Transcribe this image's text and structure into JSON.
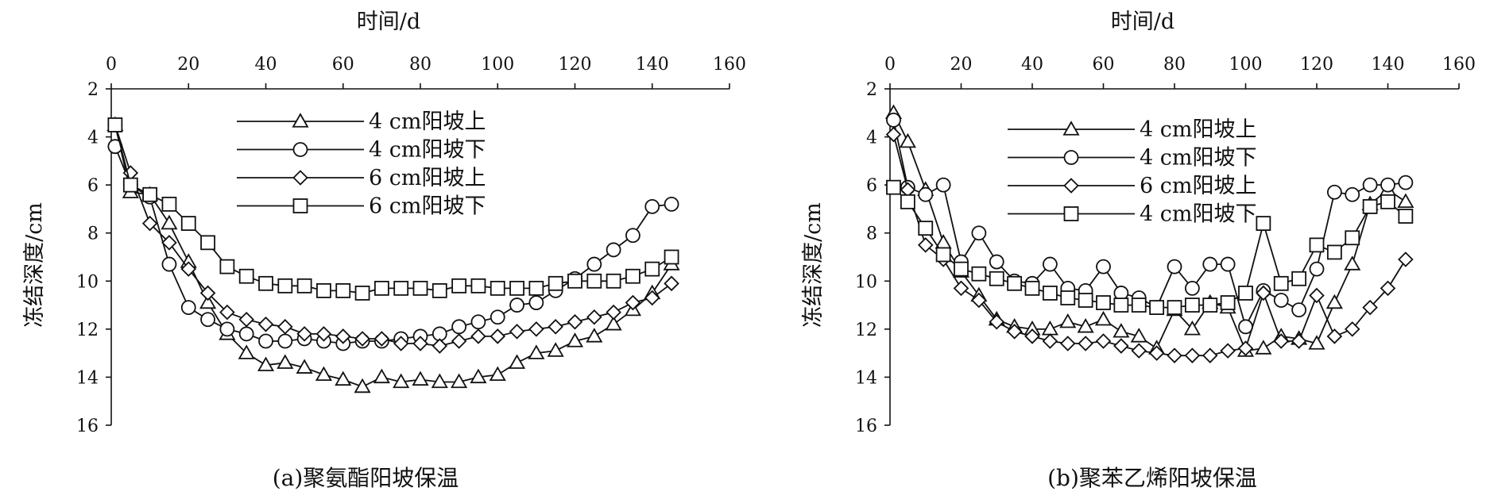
{
  "chart_data": [
    {
      "type": "line",
      "caption": "(a)聚氨酯阳坡保温",
      "xlabel": "时间/d",
      "ylabel": "冻结深度/cm",
      "xlim": [
        0,
        160
      ],
      "ylim": [
        2,
        16
      ],
      "y_inverted": true,
      "x_axis_position": "top",
      "xticks": [
        0,
        20,
        40,
        60,
        80,
        100,
        120,
        140,
        160
      ],
      "yticks": [
        2,
        4,
        6,
        8,
        10,
        12,
        14,
        16
      ],
      "grid": false,
      "legend_position": "top-center",
      "series": [
        {
          "name": "4 cm阳坡上",
          "marker": "triangle",
          "x": [
            1,
            5,
            10,
            15,
            20,
            25,
            30,
            35,
            40,
            45,
            50,
            55,
            60,
            65,
            70,
            75,
            80,
            85,
            90,
            95,
            100,
            105,
            110,
            115,
            120,
            125,
            130,
            135,
            140,
            145
          ],
          "y": [
            3.5,
            6.3,
            6.4,
            7.6,
            9.2,
            10.9,
            12.2,
            13.0,
            13.5,
            13.4,
            13.6,
            13.9,
            14.1,
            14.4,
            14.0,
            14.2,
            14.1,
            14.2,
            14.2,
            14.0,
            13.9,
            13.4,
            13.0,
            12.9,
            12.5,
            12.3,
            11.8,
            11.2,
            10.5,
            9.3
          ]
        },
        {
          "name": "4 cm阳坡下",
          "marker": "circle",
          "x": [
            1,
            5,
            10,
            15,
            20,
            25,
            30,
            35,
            40,
            45,
            50,
            55,
            60,
            65,
            70,
            75,
            80,
            85,
            90,
            95,
            100,
            105,
            110,
            115,
            120,
            125,
            130,
            135,
            140,
            145
          ],
          "y": [
            4.4,
            6.0,
            6.5,
            9.3,
            11.1,
            11.6,
            12.0,
            12.2,
            12.5,
            12.5,
            12.4,
            12.5,
            12.6,
            12.5,
            12.5,
            12.4,
            12.3,
            12.2,
            11.9,
            11.7,
            11.5,
            11.0,
            10.9,
            10.4,
            9.9,
            9.3,
            8.7,
            8.1,
            6.9,
            6.8
          ]
        },
        {
          "name": "6 cm阳坡上",
          "marker": "diamond",
          "x": [
            1,
            5,
            10,
            15,
            20,
            25,
            30,
            35,
            40,
            45,
            50,
            55,
            60,
            65,
            70,
            75,
            80,
            85,
            90,
            95,
            100,
            105,
            110,
            115,
            120,
            125,
            130,
            135,
            140,
            145
          ],
          "y": [
            3.5,
            5.5,
            7.6,
            8.4,
            9.5,
            10.5,
            11.3,
            11.6,
            11.8,
            11.9,
            12.2,
            12.2,
            12.3,
            12.4,
            12.4,
            12.6,
            12.6,
            12.7,
            12.5,
            12.3,
            12.3,
            12.1,
            12.0,
            11.9,
            11.7,
            11.5,
            11.3,
            10.9,
            10.7,
            10.1
          ]
        },
        {
          "name": "6 cm阳坡下",
          "marker": "square",
          "x": [
            1,
            5,
            10,
            15,
            20,
            25,
            30,
            35,
            40,
            45,
            50,
            55,
            60,
            65,
            70,
            75,
            80,
            85,
            90,
            95,
            100,
            105,
            110,
            115,
            120,
            125,
            130,
            135,
            140,
            145
          ],
          "y": [
            3.5,
            6.0,
            6.4,
            6.8,
            7.6,
            8.4,
            9.4,
            9.8,
            10.1,
            10.2,
            10.2,
            10.4,
            10.4,
            10.5,
            10.3,
            10.3,
            10.3,
            10.4,
            10.2,
            10.2,
            10.3,
            10.3,
            10.3,
            10.1,
            10.0,
            10.0,
            10.0,
            9.8,
            9.5,
            9.0
          ]
        }
      ]
    },
    {
      "type": "line",
      "caption": "(b)聚苯乙烯阳坡保温",
      "xlabel": "时间/d",
      "ylabel": "冻结深度/cm",
      "xlim": [
        0,
        160
      ],
      "ylim": [
        2,
        16
      ],
      "y_inverted": true,
      "x_axis_position": "top",
      "xticks": [
        0,
        20,
        40,
        60,
        80,
        100,
        120,
        140,
        160
      ],
      "yticks": [
        2,
        4,
        6,
        8,
        10,
        12,
        14,
        16
      ],
      "grid": false,
      "legend_position": "top-left",
      "series": [
        {
          "name": "4 cm阳坡上",
          "marker": "triangle",
          "x": [
            1,
            5,
            10,
            15,
            20,
            25,
            30,
            35,
            40,
            45,
            50,
            55,
            60,
            65,
            70,
            75,
            80,
            85,
            90,
            95,
            100,
            105,
            110,
            115,
            120,
            125,
            130,
            135,
            140,
            145
          ],
          "y": [
            3.0,
            4.2,
            6.2,
            8.4,
            9.6,
            10.6,
            11.6,
            11.9,
            12.0,
            12.0,
            11.7,
            11.9,
            11.6,
            12.1,
            12.3,
            12.8,
            11.2,
            12.0,
            10.9,
            11.1,
            12.9,
            12.8,
            12.3,
            12.4,
            12.6,
            10.9,
            9.3,
            6.8,
            6.2,
            6.7
          ]
        },
        {
          "name": "4 cm阳坡下",
          "marker": "circle",
          "x": [
            1,
            5,
            10,
            15,
            20,
            25,
            30,
            35,
            40,
            45,
            50,
            55,
            60,
            65,
            70,
            75,
            80,
            85,
            90,
            95,
            100,
            105,
            110,
            115,
            120,
            125,
            130,
            135,
            140,
            145
          ],
          "y": [
            3.3,
            6.1,
            6.4,
            6.0,
            9.2,
            8.0,
            9.2,
            10.0,
            10.1,
            9.3,
            10.3,
            10.4,
            9.4,
            10.5,
            10.7,
            11.1,
            9.4,
            10.3,
            9.3,
            9.3,
            11.9,
            10.4,
            10.8,
            11.2,
            9.5,
            6.3,
            6.4,
            6.0,
            6.0,
            5.9
          ]
        },
        {
          "name": "6 cm阳坡上",
          "marker": "diamond",
          "x": [
            1,
            5,
            10,
            15,
            20,
            25,
            30,
            35,
            40,
            45,
            50,
            55,
            60,
            65,
            70,
            75,
            80,
            85,
            90,
            95,
            100,
            105,
            110,
            115,
            120,
            125,
            130,
            135,
            140,
            145
          ],
          "y": [
            3.9,
            6.2,
            8.5,
            9.1,
            10.3,
            10.8,
            11.7,
            12.1,
            12.3,
            12.5,
            12.6,
            12.6,
            12.5,
            12.7,
            12.9,
            13.0,
            13.1,
            13.1,
            13.1,
            12.9,
            12.8,
            10.5,
            12.5,
            12.5,
            10.6,
            12.3,
            12.0,
            11.1,
            10.3,
            9.1
          ]
        },
        {
          "name": "4 cm阳坡下",
          "marker": "square",
          "x": [
            1,
            5,
            10,
            15,
            20,
            25,
            30,
            35,
            40,
            45,
            50,
            55,
            60,
            65,
            70,
            75,
            80,
            85,
            90,
            95,
            100,
            105,
            110,
            115,
            120,
            125,
            130,
            135,
            140,
            145
          ],
          "y": [
            6.1,
            6.7,
            7.8,
            8.9,
            9.5,
            9.7,
            9.9,
            10.1,
            10.3,
            10.5,
            10.7,
            10.8,
            10.9,
            11.0,
            11.0,
            11.1,
            11.1,
            11.0,
            11.0,
            10.9,
            10.5,
            7.6,
            10.1,
            9.9,
            8.5,
            8.8,
            8.2,
            6.9,
            6.7,
            7.3
          ]
        }
      ]
    }
  ]
}
